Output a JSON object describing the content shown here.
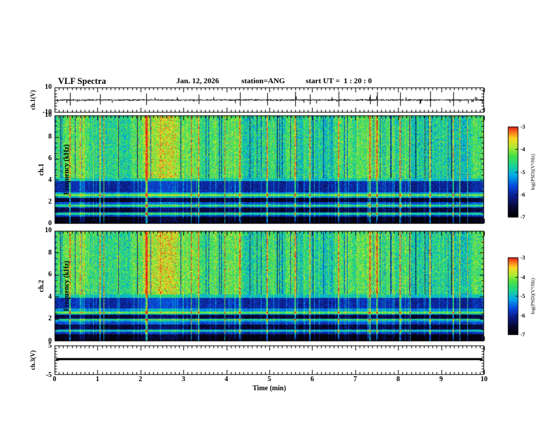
{
  "header": {
    "title": "VLF Spectra",
    "date": "Jan. 12, 2026",
    "station": "station=ANG",
    "start_ut": "start UT =  1 : 20 : 0"
  },
  "xaxis": {
    "label": "Time (min)",
    "min": 0,
    "max": 10,
    "major_ticks": [
      0,
      1,
      2,
      3,
      4,
      5,
      6,
      7,
      8,
      9,
      10
    ]
  },
  "chart_data": [
    {
      "type": "line",
      "name": "ch1 voltage waveform",
      "ylabel": "ch.1(V)",
      "ylim": [
        -10,
        10
      ],
      "ytick_labels": [
        10,
        -10
      ],
      "xlim": [
        0,
        10
      ],
      "summary": "Broadband noise of about ±1 V around 0 V with impulsive sferic spikes reaching near full scale",
      "spike_times_min": [
        0.35,
        1.05,
        2.12,
        3.35,
        4.32,
        4.95,
        5.6,
        5.95,
        6.62,
        7.35,
        7.52,
        8.05,
        8.75,
        9.3
      ]
    },
    {
      "type": "heatmap",
      "name": "ch1 spectrogram",
      "ylabel_lines": [
        "ch.1",
        "Frequency (kHz)"
      ],
      "ylim": [
        0,
        10
      ],
      "ytick_labels": [
        10,
        8,
        6,
        4,
        2,
        0
      ],
      "xlim": [
        0,
        10
      ],
      "zlabel": "log(PSD)(V²/Hz)",
      "zlim": [
        -7,
        -3
      ],
      "colorbar_ticks": [
        -3,
        -4,
        -5,
        -6,
        -7
      ],
      "bands": [
        {
          "f_range": [
            4.2,
            10
          ],
          "level": -4.35
        },
        {
          "f_range": [
            3.9,
            4.2
          ],
          "level": -4.9
        },
        {
          "f_range": [
            2.9,
            3.9
          ],
          "level": -5.9
        },
        {
          "f_range": [
            2.35,
            2.9
          ],
          "level": -5.15
        },
        {
          "f_range": [
            1.95,
            2.35
          ],
          "level": -6.55
        },
        {
          "f_range": [
            1.45,
            1.95
          ],
          "level": -5.55
        },
        {
          "f_range": [
            0.95,
            1.45
          ],
          "level": -6.45
        },
        {
          "f_range": [
            0.6,
            0.95
          ],
          "level": -5.8
        },
        {
          "f_range": [
            0,
            0.6
          ],
          "level": -6.75
        }
      ],
      "tone_lines_khz": [
        2.62,
        1.62,
        0.88
      ]
    },
    {
      "type": "heatmap",
      "name": "ch2 spectrogram",
      "ylabel_lines": [
        "ch.2",
        "Frequency (kHz)"
      ],
      "ylim": [
        0,
        10
      ],
      "ytick_labels": [
        10,
        8,
        6,
        4,
        2,
        0
      ],
      "xlim": [
        0,
        10
      ],
      "zlabel": "log(PSD)(V²/Hz)",
      "zlim": [
        -7,
        -3
      ],
      "colorbar_ticks": [
        -3,
        -4,
        -5,
        -6,
        -7
      ],
      "bands": [
        {
          "f_range": [
            4.2,
            10
          ],
          "level": -4.3
        },
        {
          "f_range": [
            3.9,
            4.2
          ],
          "level": -4.85
        },
        {
          "f_range": [
            2.95,
            3.9
          ],
          "level": -5.85
        },
        {
          "f_range": [
            2.4,
            2.95
          ],
          "level": -5.2
        },
        {
          "f_range": [
            2.0,
            2.4
          ],
          "level": -6.5
        },
        {
          "f_range": [
            1.5,
            2.0
          ],
          "level": -5.6
        },
        {
          "f_range": [
            1.0,
            1.5
          ],
          "level": -6.45
        },
        {
          "f_range": [
            0.6,
            1.0
          ],
          "level": -5.85
        },
        {
          "f_range": [
            0,
            0.6
          ],
          "level": -6.75
        }
      ],
      "tone_lines_khz": [
        2.55,
        1.9,
        0.9
      ]
    },
    {
      "type": "line",
      "name": "ch3 voltage",
      "ylabel": "ch.3(V)",
      "ylim": [
        -5,
        5
      ],
      "ytick_labels": [
        5,
        -5
      ],
      "xlim": [
        0,
        10
      ],
      "value": 0.4,
      "summary": "Constant flat trace near 0 V across the full record"
    }
  ]
}
